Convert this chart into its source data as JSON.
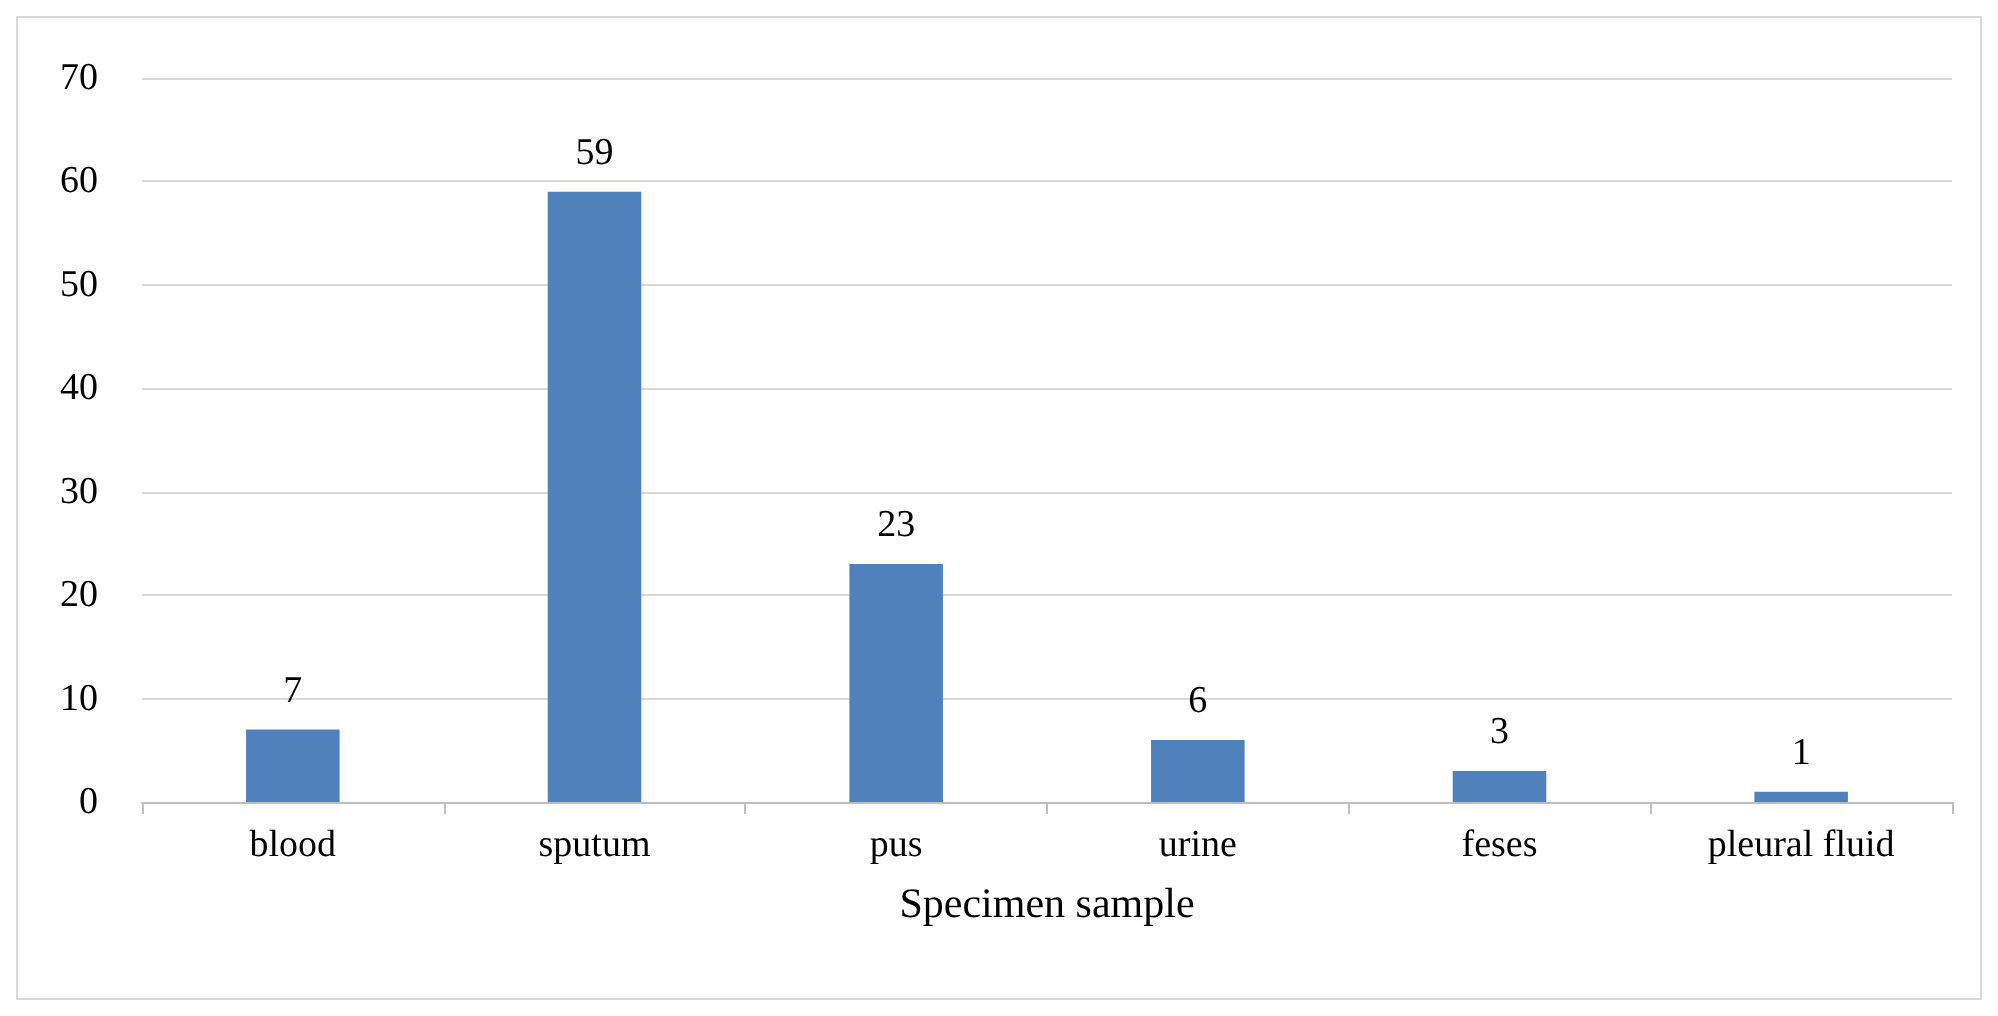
{
  "chart_data": {
    "type": "bar",
    "xlabel": "Specimen sample",
    "categories": [
      "blood",
      "sputum",
      "pus",
      "urine",
      "feses",
      "pleural fluid"
    ],
    "values": [
      7,
      59,
      23,
      6,
      3,
      1
    ],
    "color": "#4f81bd",
    "ylim": [
      0,
      70
    ],
    "yticks": [
      0,
      10,
      20,
      30,
      40,
      50,
      60,
      70
    ],
    "grid": "y",
    "data_labels": true
  }
}
